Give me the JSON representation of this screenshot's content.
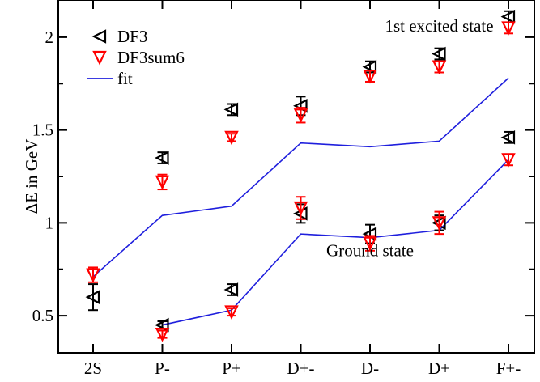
{
  "chart_data": {
    "type": "scatter",
    "ylabel": "ΔE in GeV",
    "xlabel": "",
    "categories": [
      "2S",
      "P-",
      "P+",
      "D+-",
      "D-",
      "D+",
      "F+-"
    ],
    "ylim": [
      0.3,
      2.2
    ],
    "yticks": [
      0.5,
      1,
      1.5,
      2
    ],
    "ytick_labels": [
      "0.5",
      "1",
      "1.5",
      "2"
    ],
    "grid": false,
    "legend_position": "top-left",
    "series": [
      {
        "name": "DF3",
        "marker": "triangle-left",
        "color": "#000000",
        "points": [
          {
            "x": "2S",
            "y": 0.6,
            "err": 0.07
          },
          {
            "x": "P-",
            "y": 0.45,
            "err": 0.02
          },
          {
            "x": "P-",
            "y": 1.35,
            "err": 0.03
          },
          {
            "x": "P+",
            "y": 0.64,
            "err": 0.03
          },
          {
            "x": "P+",
            "y": 1.61,
            "err": 0.03
          },
          {
            "x": "D+-",
            "y": 1.05,
            "err": 0.05
          },
          {
            "x": "D+-",
            "y": 1.63,
            "err": 0.05
          },
          {
            "x": "D-",
            "y": 0.94,
            "err": 0.05
          },
          {
            "x": "D-",
            "y": 1.84,
            "err": 0.03
          },
          {
            "x": "D+",
            "y": 1.0,
            "err": 0.04
          },
          {
            "x": "D+",
            "y": 1.91,
            "err": 0.03
          },
          {
            "x": "F+-",
            "y": 1.46,
            "err": 0.03
          },
          {
            "x": "F+-",
            "y": 2.11,
            "err": 0.03
          }
        ]
      },
      {
        "name": "DF3sum6",
        "marker": "triangle-down",
        "color": "#ff0000",
        "points": [
          {
            "x": "2S",
            "y": 0.72,
            "err": 0.04
          },
          {
            "x": "P-",
            "y": 0.4,
            "err": 0.02
          },
          {
            "x": "P-",
            "y": 1.22,
            "err": 0.04
          },
          {
            "x": "P+",
            "y": 0.52,
            "err": 0.02
          },
          {
            "x": "P+",
            "y": 1.46,
            "err": 0.02
          },
          {
            "x": "D+-",
            "y": 1.08,
            "err": 0.06
          },
          {
            "x": "D+-",
            "y": 1.58,
            "err": 0.04
          },
          {
            "x": "D-",
            "y": 0.89,
            "err": 0.04
          },
          {
            "x": "D-",
            "y": 1.79,
            "err": 0.03
          },
          {
            "x": "D+",
            "y": 1.0,
            "err": 0.06
          },
          {
            "x": "D+",
            "y": 1.84,
            "err": 0.03
          },
          {
            "x": "F+-",
            "y": 1.34,
            "err": 0.03
          },
          {
            "x": "F+-",
            "y": 2.05,
            "err": 0.03
          }
        ]
      },
      {
        "name": "fit",
        "line": true,
        "color": "#1f1fdd",
        "curves": [
          [
            0.71,
            1.04,
            1.09,
            1.43,
            1.41,
            1.44,
            1.78
          ],
          [
            null,
            0.45,
            0.53,
            0.94,
            0.92,
            0.96,
            1.34
          ]
        ]
      }
    ],
    "annotations": [
      {
        "text": "1st excited state",
        "x": "D+",
        "y": 2.03
      },
      {
        "text": "Ground state",
        "x": "D-",
        "y": 0.82
      }
    ]
  }
}
